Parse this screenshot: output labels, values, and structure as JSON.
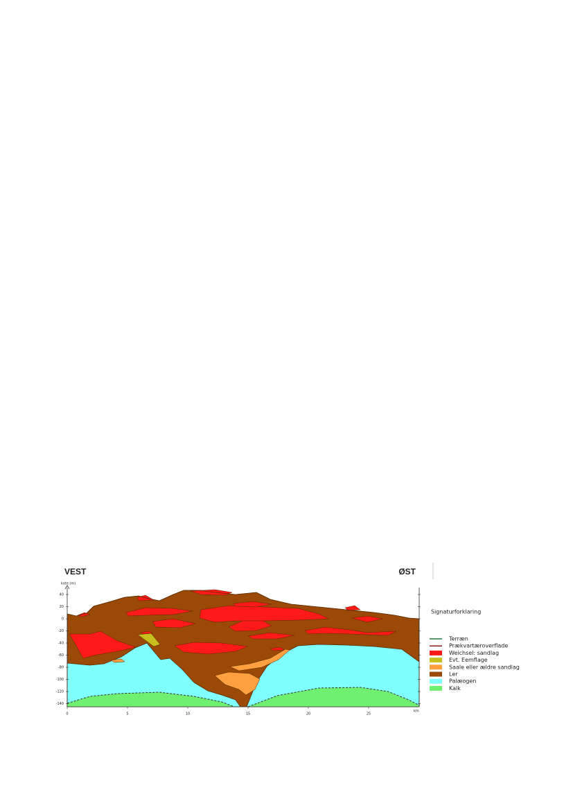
{
  "header": {
    "west": "VEST",
    "east": "ØST"
  },
  "axis": {
    "y_label": "kote (m)",
    "yticks": [
      40,
      20,
      0,
      -20,
      -40,
      -60,
      -80,
      -100,
      -120,
      -140
    ],
    "x_unit": "km",
    "xticks": [
      0,
      5,
      10,
      15,
      20,
      25
    ]
  },
  "legend": {
    "title": "Signaturforklaring",
    "items": [
      {
        "label": "Terræn",
        "color": "#1e7a3a",
        "kind": "line"
      },
      {
        "label": "Prækvartæroverflade",
        "color": "#8b1a1a",
        "kind": "line"
      },
      {
        "label": "Weichsel: sandlag",
        "color": "#ff1a1a",
        "kind": "fill"
      },
      {
        "label": "Evt. Eemflage",
        "color": "#c8c01e",
        "kind": "fill"
      },
      {
        "label": "Saale eller ældre sandlag",
        "color": "#ffa040",
        "kind": "fill"
      },
      {
        "label": "Ler",
        "color": "#9a4a06",
        "kind": "fill"
      },
      {
        "label": "Palæogen",
        "color": "#80ffff",
        "kind": "fill"
      },
      {
        "label": "Kalk",
        "color": "#70f070",
        "kind": "fill"
      }
    ]
  }
}
